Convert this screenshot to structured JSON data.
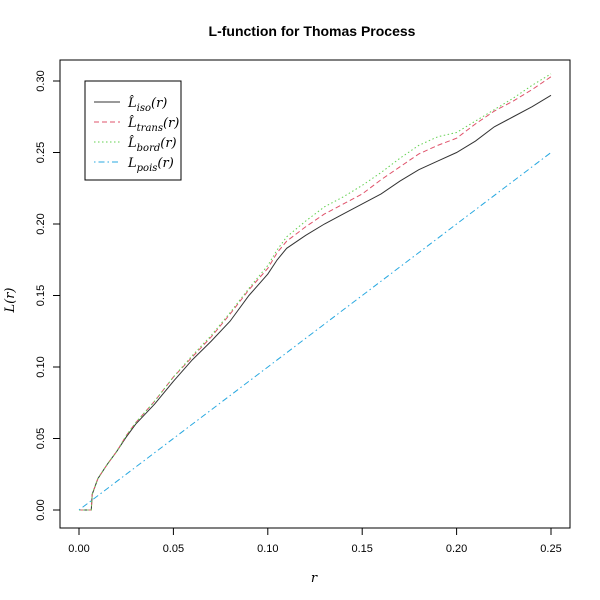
{
  "chart_data": {
    "type": "line",
    "title": "L-function for Thomas Process",
    "xlabel": "r",
    "ylabel": "L(r)",
    "xlim": [
      0,
      0.25
    ],
    "ylim": [
      0,
      0.3
    ],
    "x_ticks": [
      0,
      0.05,
      0.1,
      0.15,
      0.2,
      0.25
    ],
    "x_tick_labels": [
      "0.00",
      "0.05",
      "0.10",
      "0.15",
      "0.20",
      "0.25"
    ],
    "y_ticks": [
      0,
      0.05,
      0.1,
      0.15,
      0.2,
      0.25,
      0.3
    ],
    "y_tick_labels": [
      "0.00",
      "0.05",
      "0.10",
      "0.15",
      "0.20",
      "0.25",
      "0.30"
    ],
    "grid": false,
    "legend_position": "top-left",
    "series": [
      {
        "name": "L̂iso(r)",
        "legend_base": "L̂",
        "legend_sub": "iso",
        "legend_tail": "(r)",
        "color": "#333333",
        "dash": "solid",
        "x": [
          0,
          0.0065,
          0.007,
          0.01,
          0.015,
          0.02,
          0.025,
          0.03,
          0.04,
          0.05,
          0.06,
          0.07,
          0.08,
          0.09,
          0.1,
          0.105,
          0.11,
          0.12,
          0.13,
          0.14,
          0.15,
          0.16,
          0.17,
          0.18,
          0.19,
          0.2,
          0.21,
          0.22,
          0.23,
          0.24,
          0.25
        ],
        "y": [
          0,
          0,
          0.011,
          0.022,
          0.032,
          0.041,
          0.051,
          0.06,
          0.074,
          0.09,
          0.105,
          0.118,
          0.132,
          0.15,
          0.165,
          0.175,
          0.183,
          0.192,
          0.2,
          0.207,
          0.214,
          0.221,
          0.23,
          0.238,
          0.244,
          0.25,
          0.258,
          0.268,
          0.275,
          0.282,
          0.29
        ]
      },
      {
        "name": "L̂trans(r)",
        "legend_base": "L̂",
        "legend_sub": "trans",
        "legend_tail": "(r)",
        "color": "#DF536B",
        "dash": "dashed",
        "x": [
          0,
          0.0065,
          0.007,
          0.01,
          0.015,
          0.02,
          0.025,
          0.03,
          0.04,
          0.05,
          0.06,
          0.07,
          0.08,
          0.09,
          0.1,
          0.105,
          0.11,
          0.12,
          0.13,
          0.14,
          0.15,
          0.16,
          0.17,
          0.18,
          0.19,
          0.2,
          0.21,
          0.22,
          0.23,
          0.24,
          0.25
        ],
        "y": [
          0,
          0,
          0.011,
          0.022,
          0.032,
          0.041,
          0.052,
          0.061,
          0.076,
          0.093,
          0.107,
          0.121,
          0.137,
          0.154,
          0.169,
          0.18,
          0.188,
          0.198,
          0.207,
          0.214,
          0.221,
          0.231,
          0.24,
          0.249,
          0.255,
          0.26,
          0.27,
          0.279,
          0.286,
          0.294,
          0.303
        ]
      },
      {
        "name": "L̂bord(r)",
        "legend_base": "L̂",
        "legend_sub": "bord",
        "legend_tail": "(r)",
        "color": "#61D04F",
        "dash": "dotted",
        "x": [
          0,
          0.0065,
          0.007,
          0.01,
          0.015,
          0.02,
          0.025,
          0.03,
          0.04,
          0.05,
          0.06,
          0.07,
          0.08,
          0.09,
          0.1,
          0.105,
          0.11,
          0.12,
          0.13,
          0.14,
          0.15,
          0.16,
          0.17,
          0.18,
          0.19,
          0.2,
          0.21,
          0.22,
          0.23,
          0.24,
          0.25
        ],
        "y": [
          0,
          0,
          0.011,
          0.022,
          0.032,
          0.041,
          0.052,
          0.061,
          0.076,
          0.093,
          0.108,
          0.122,
          0.138,
          0.155,
          0.171,
          0.182,
          0.191,
          0.202,
          0.212,
          0.219,
          0.227,
          0.236,
          0.246,
          0.255,
          0.261,
          0.264,
          0.272,
          0.28,
          0.288,
          0.297,
          0.305
        ]
      },
      {
        "name": "Lpois(r)",
        "legend_base": "L",
        "legend_sub": "pois",
        "legend_tail": "(r)",
        "color": "#28A8E0",
        "dash": "dotdash",
        "x": [
          0,
          0.25
        ],
        "y": [
          0,
          0.25
        ]
      }
    ]
  }
}
